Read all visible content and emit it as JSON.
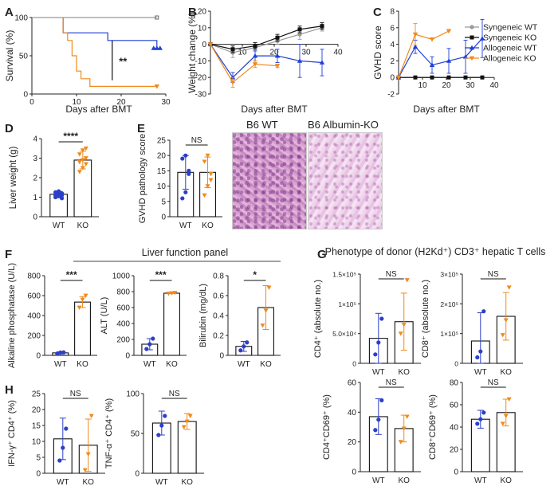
{
  "colors": {
    "syn_wt": "#999999",
    "syn_ko": "#111111",
    "allo_wt": "#1f3fd6",
    "allo_ko": "#f08a1c",
    "wt_bar": "#2b3fc9",
    "ko_bar": "#f08a1c"
  },
  "panels": {
    "A": "A",
    "B": "B",
    "C": "C",
    "D": "D",
    "E": "E",
    "F": "F",
    "G": "G",
    "H": "H"
  },
  "legend": [
    {
      "label": "Syngeneic WT",
      "series": "syn_wt"
    },
    {
      "label": "Syngeneic KO",
      "series": "syn_ko"
    },
    {
      "label": "Allogeneic WT",
      "series": "allo_wt"
    },
    {
      "label": "Allogeneic KO",
      "series": "allo_ko"
    }
  ],
  "histology": {
    "wt_label": "B6 WT",
    "ko_label": "B6 Albumin-KO"
  },
  "headers": {
    "liver_panel": "Liver function panel",
    "phenotype": "Phenotype of donor (H2Kd⁺) CD3⁺ hepatic T cells"
  },
  "chart_data": [
    {
      "id": "A",
      "type": "line",
      "title": "",
      "xlabel": "Days after BMT",
      "ylabel": "Survival (%)",
      "xlim": [
        0,
        30
      ],
      "ylim": [
        0,
        100
      ],
      "xticks": [
        0,
        10,
        20,
        30
      ],
      "yticks": [
        0,
        50,
        100
      ],
      "annotations": [
        "**",
        "***"
      ],
      "series": [
        {
          "name": "Syngeneic WT",
          "color": "#999999",
          "step": true,
          "points": [
            [
              0,
              100
            ],
            [
              28,
              100
            ]
          ]
        },
        {
          "name": "Allogeneic WT",
          "color": "#1f3fd6",
          "step": true,
          "points": [
            [
              7,
              100
            ],
            [
              7,
              80
            ],
            [
              17,
              80
            ],
            [
              17,
              70
            ],
            [
              28,
              70
            ],
            [
              28,
              60
            ]
          ]
        },
        {
          "name": "Allogeneic KO",
          "color": "#f08a1c",
          "step": true,
          "points": [
            [
              7,
              100
            ],
            [
              7,
              80
            ],
            [
              8,
              80
            ],
            [
              8,
              70
            ],
            [
              9,
              70
            ],
            [
              9,
              50
            ],
            [
              10,
              50
            ],
            [
              10,
              30
            ],
            [
              11,
              30
            ],
            [
              11,
              20
            ],
            [
              13,
              20
            ],
            [
              13,
              10
            ],
            [
              28,
              10
            ]
          ]
        }
      ]
    },
    {
      "id": "B",
      "type": "line",
      "title": "",
      "xlabel": "Days after BMT",
      "ylabel": "Weight change (%)",
      "xlim": [
        0,
        40
      ],
      "ylim": [
        -30,
        20
      ],
      "xticks": [
        10,
        20,
        30,
        40
      ],
      "yticks": [
        -30,
        -20,
        -10,
        0,
        10,
        20
      ],
      "series": [
        {
          "name": "Syngeneic WT",
          "color": "#999999",
          "x": [
            0,
            7,
            14,
            21,
            28,
            35
          ],
          "y": [
            0,
            -5,
            -2,
            2,
            6,
            10
          ],
          "err": [
            0,
            3,
            2,
            2,
            3,
            2
          ]
        },
        {
          "name": "Syngeneic KO",
          "color": "#111111",
          "x": [
            0,
            7,
            14,
            21,
            28,
            35
          ],
          "y": [
            0,
            -3,
            -1,
            4,
            9,
            11
          ],
          "err": [
            0,
            2,
            2,
            2,
            2,
            2
          ]
        },
        {
          "name": "Allogeneic WT",
          "color": "#1f3fd6",
          "x": [
            0,
            7,
            14,
            21,
            28,
            35
          ],
          "y": [
            0,
            -20,
            -7,
            -7,
            -10,
            -11
          ],
          "err": [
            0,
            3,
            3,
            4,
            10,
            8
          ]
        },
        {
          "name": "Allogeneic KO",
          "color": "#f08a1c",
          "x": [
            0,
            7,
            14,
            21
          ],
          "y": [
            0,
            -23,
            -12,
            -13
          ],
          "err": [
            0,
            3,
            2,
            1
          ]
        }
      ]
    },
    {
      "id": "C",
      "type": "line",
      "title": "",
      "xlabel": "Days after BMT",
      "ylabel": "GVHD score",
      "xlim": [
        0,
        40
      ],
      "ylim": [
        -2,
        8
      ],
      "xticks": [
        10,
        20,
        30,
        40
      ],
      "yticks": [
        -2,
        0,
        2,
        4,
        6,
        8
      ],
      "series": [
        {
          "name": "Syngeneic WT",
          "color": "#999999",
          "x": [
            0,
            7,
            14,
            21,
            28,
            35
          ],
          "y": [
            0,
            0,
            0,
            0,
            0,
            0
          ],
          "err": [
            0,
            0,
            0,
            0,
            0,
            0
          ]
        },
        {
          "name": "Syngeneic KO",
          "color": "#111111",
          "x": [
            0,
            7,
            14,
            21,
            28,
            35
          ],
          "y": [
            0,
            0,
            0,
            0,
            0,
            0
          ],
          "err": [
            0,
            0,
            0,
            0,
            0,
            0
          ]
        },
        {
          "name": "Allogeneic WT",
          "color": "#1f3fd6",
          "x": [
            0,
            7,
            14,
            21,
            28,
            35
          ],
          "y": [
            0,
            3.7,
            1.5,
            2,
            2.5,
            4.7
          ],
          "err": [
            0,
            0.8,
            1,
            1.5,
            2,
            2.3
          ]
        },
        {
          "name": "Allogeneic KO",
          "color": "#f08a1c",
          "x": [
            0,
            7,
            14,
            21
          ],
          "y": [
            0,
            5.2,
            4.6,
            5.6
          ],
          "err": [
            0,
            1.3,
            0,
            0
          ]
        }
      ]
    },
    {
      "id": "D",
      "type": "bar",
      "ylabel": "Liver weight (g)",
      "categories": [
        "WT",
        "KO"
      ],
      "values": [
        1.15,
        2.9
      ],
      "err": [
        0.15,
        0.45
      ],
      "ylim": [
        0,
        4
      ],
      "yticks": [
        0,
        1,
        2,
        3,
        4
      ],
      "sig": "****",
      "points": [
        [
          1.0,
          1.05,
          1.1,
          1.1,
          1.15,
          1.2,
          1.25,
          1.3,
          0.95
        ],
        [
          2.3,
          2.5,
          2.7,
          2.8,
          2.9,
          3.0,
          3.2,
          3.4,
          3.5
        ]
      ]
    },
    {
      "id": "E",
      "type": "bar",
      "ylabel": "GVHD pathology score",
      "categories": [
        "WT",
        "KO"
      ],
      "values": [
        14.5,
        14.5
      ],
      "err": [
        5.5,
        5
      ],
      "ylim": [
        0,
        25
      ],
      "yticks": [
        0,
        5,
        10,
        15,
        20,
        25
      ],
      "sig": "NS",
      "points": [
        [
          6,
          8,
          14,
          19,
          20,
          15
        ],
        [
          7,
          10,
          14,
          18,
          20,
          12
        ]
      ]
    },
    {
      "id": "F1",
      "type": "bar",
      "ylabel": "Alkaline phosphatase (U/L)",
      "categories": [
        "WT",
        "KO"
      ],
      "values": [
        25,
        535
      ],
      "err": [
        10,
        55
      ],
      "ylim": [
        0,
        800
      ],
      "yticks": [
        0,
        200,
        400,
        600,
        800
      ],
      "sig": "***",
      "points": [
        [
          18,
          28,
          30
        ],
        [
          480,
          560,
          600
        ]
      ]
    },
    {
      "id": "F2",
      "type": "bar",
      "ylabel": "ALT (U/L)",
      "categories": [
        "WT",
        "KO"
      ],
      "values": [
        140,
        780
      ],
      "err": [
        70,
        5
      ],
      "ylim": [
        0,
        1000
      ],
      "yticks": [
        0,
        200,
        400,
        600,
        800,
        1000
      ],
      "sig": "***",
      "points": [
        [
          80,
          140,
          210
        ],
        [
          775,
          780,
          785
        ]
      ]
    },
    {
      "id": "F3",
      "type": "bar",
      "ylabel": "Bilirubin (mg/dL)",
      "categories": [
        "WT",
        "KO"
      ],
      "values": [
        0.09,
        0.48
      ],
      "err": [
        0.05,
        0.22
      ],
      "ylim": [
        0,
        0.8
      ],
      "yticks": [
        0,
        0.2,
        0.4,
        0.6,
        0.8
      ],
      "sig": "*",
      "points": [
        [
          0.05,
          0.09,
          0.13
        ],
        [
          0.3,
          0.45,
          0.68
        ]
      ]
    },
    {
      "id": "G1",
      "type": "bar",
      "ylabel": "CD4⁺ (absolute no.)",
      "categories": [
        "WT",
        "KO"
      ],
      "values": [
        42000,
        70000
      ],
      "err": [
        42000,
        48000
      ],
      "ylim": [
        0,
        150000
      ],
      "yticks": [
        0,
        50000,
        100000,
        150000
      ],
      "ytick_labels": [
        "0",
        "5.0×10⁴",
        "1×10⁵",
        "1.5×10⁵"
      ],
      "sig": "NS",
      "points": [
        [
          15000,
          35000,
          75000
        ],
        [
          50000,
          65000,
          140000
        ]
      ]
    },
    {
      "id": "G2",
      "type": "bar",
      "ylabel": "CD8⁺ (absolute no.)",
      "categories": [
        "WT",
        "KO"
      ],
      "values": [
        75000,
        158000
      ],
      "err": [
        95000,
        80000
      ],
      "ylim": [
        0,
        300000
      ],
      "yticks": [
        0,
        100000,
        200000,
        300000
      ],
      "ytick_labels": [
        "0",
        "1×10⁵",
        "2×10⁵",
        "3×10⁵"
      ],
      "sig": "NS",
      "points": [
        [
          20000,
          40000,
          175000
        ],
        [
          95000,
          145000,
          255000
        ]
      ]
    },
    {
      "id": "G3",
      "type": "bar",
      "ylabel": "CD4⁺CD69⁺ (%)",
      "categories": [
        "WT",
        "KO"
      ],
      "values": [
        37,
        29
      ],
      "err": [
        12,
        9
      ],
      "ylim": [
        0,
        60
      ],
      "yticks": [
        0,
        20,
        40,
        60
      ],
      "sig": "NS",
      "points": [
        [
          28,
          35,
          48
        ],
        [
          20,
          29,
          37
        ]
      ]
    },
    {
      "id": "G4",
      "type": "bar",
      "ylabel": "CD8⁺CD69⁺ (%)",
      "categories": [
        "WT",
        "KO"
      ],
      "values": [
        47,
        53
      ],
      "err": [
        8,
        12
      ],
      "ylim": [
        0,
        80
      ],
      "yticks": [
        0,
        20,
        40,
        60,
        80
      ],
      "sig": "NS",
      "points": [
        [
          43,
          47,
          53
        ],
        [
          43,
          50,
          65
        ]
      ]
    },
    {
      "id": "H1",
      "type": "bar",
      "ylabel": "IFN-γ⁺ CD4⁺ (%)",
      "categories": [
        "WT",
        "KO"
      ],
      "values": [
        10.8,
        8.8
      ],
      "err": [
        6.5,
        8.2
      ],
      "ylim": [
        0,
        25
      ],
      "yticks": [
        0,
        5,
        10,
        15,
        20,
        25
      ],
      "sig": "NS",
      "points": [
        [
          4,
          8,
          14
        ],
        [
          1,
          6,
          18
        ]
      ]
    },
    {
      "id": "H2",
      "type": "bar",
      "ylabel": "TNF-α⁺ CD4⁺ (%)",
      "categories": [
        "WT",
        "KO"
      ],
      "values": [
        63,
        65
      ],
      "err": [
        15,
        10
      ],
      "ylim": [
        0,
        100
      ],
      "yticks": [
        0,
        50,
        100
      ],
      "sig": "NS",
      "points": [
        [
          48,
          60,
          72
        ],
        [
          58,
          65,
          72
        ]
      ]
    }
  ]
}
